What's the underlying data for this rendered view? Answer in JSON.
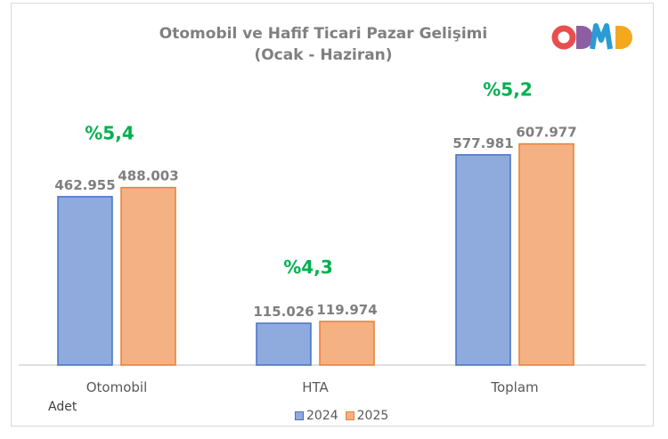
{
  "chart_data": {
    "type": "bar",
    "title": "Otomobil ve Hafif Ticari Pazar Gelişimi",
    "subtitle": "(Ocak - Haziran)",
    "categories": [
      "Otomobil",
      "HTA",
      "Toplam"
    ],
    "series": [
      {
        "name": "2024",
        "values": [
          462955,
          115026,
          577981
        ],
        "labels": [
          "462.955",
          "115.026",
          "577.981"
        ],
        "color": "#8faadc",
        "border": "#4472c4"
      },
      {
        "name": "2025",
        "values": [
          488003,
          119974,
          607977
        ],
        "labels": [
          "488.003",
          "119.974",
          "607.977"
        ],
        "color": "#f4b183",
        "border": "#ed7d31"
      }
    ],
    "growth_labels": [
      "%5,4",
      "%4,3",
      "%5,2"
    ],
    "growth_color": "#00b050",
    "ylim": [
      0,
      700000
    ],
    "ylabel": "Adet",
    "grid": false,
    "legend_position": "bottom"
  },
  "logo": {
    "text": "ODMD",
    "colors": [
      "#e94e4e",
      "#8e5ea2",
      "#2b9bd6",
      "#f4a81d"
    ]
  }
}
